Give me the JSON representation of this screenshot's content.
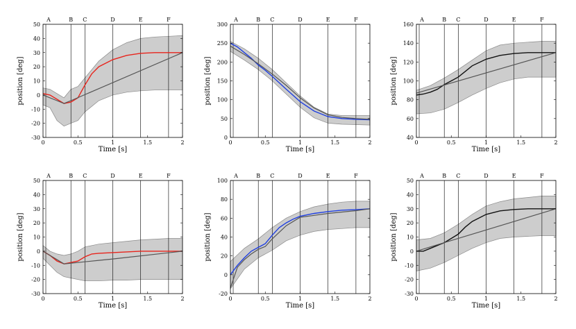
{
  "chart_data": [
    {
      "type": "line",
      "xlabel": "Time [s]",
      "ylabel": "position [deg]",
      "xlim": [
        0,
        2
      ],
      "ylim": [
        -30,
        50
      ],
      "xticks": [
        0,
        0.5,
        1,
        1.5,
        2
      ],
      "yticks": [
        -30,
        -20,
        -10,
        0,
        10,
        20,
        30,
        40,
        50
      ],
      "event_lines": [
        {
          "label": "A",
          "x": 0.04
        },
        {
          "label": "B",
          "x": 0.4
        },
        {
          "label": "C",
          "x": 0.6
        },
        {
          "label": "D",
          "x": 1.0
        },
        {
          "label": "E",
          "x": 1.4
        },
        {
          "label": "F",
          "x": 1.8
        }
      ],
      "band": {
        "x": [
          0,
          0.1,
          0.2,
          0.3,
          0.4,
          0.5,
          0.6,
          0.8,
          1.0,
          1.2,
          1.4,
          1.6,
          1.8,
          2.0
        ],
        "upper": [
          5,
          4,
          1,
          -2,
          4,
          6,
          12,
          24,
          32,
          37,
          40,
          41,
          41.5,
          42
        ],
        "lower": [
          -7,
          -9,
          -18,
          -22,
          -20,
          -18,
          -12,
          -4,
          0,
          2,
          3,
          3.5,
          3.5,
          3.5
        ]
      },
      "series": [
        {
          "color": "#e8241c",
          "x": [
            0,
            0.1,
            0.2,
            0.3,
            0.4,
            0.5,
            0.6,
            0.7,
            0.8,
            1.0,
            1.2,
            1.4,
            1.6,
            1.8,
            2.0
          ],
          "y": [
            1,
            0,
            -3,
            -6,
            -5,
            -2,
            7,
            15,
            20,
            25,
            28,
            29.5,
            30,
            30,
            30
          ]
        },
        {
          "color": "#555555",
          "x": [
            0,
            0.1,
            0.2,
            0.3,
            0.4,
            2.0
          ],
          "y": [
            0,
            -2,
            -4,
            -6,
            -4,
            30
          ]
        }
      ]
    },
    {
      "type": "line",
      "xlabel": "Time [s]",
      "ylabel": "position [deg]",
      "xlim": [
        0,
        2
      ],
      "ylim": [
        0,
        300
      ],
      "xticks": [
        0,
        0.5,
        1,
        1.5,
        2
      ],
      "yticks": [
        0,
        50,
        100,
        150,
        200,
        250,
        300
      ],
      "event_lines": [
        {
          "label": "A",
          "x": 0.04
        },
        {
          "label": "B",
          "x": 0.4
        },
        {
          "label": "C",
          "x": 0.6
        },
        {
          "label": "D",
          "x": 1.0
        },
        {
          "label": "E",
          "x": 1.4
        },
        {
          "label": "F",
          "x": 1.8
        }
      ],
      "band": {
        "x": [
          0,
          0.2,
          0.4,
          0.6,
          0.8,
          1.0,
          1.2,
          1.4,
          1.6,
          1.8,
          2.0
        ],
        "upper": [
          255,
          235,
          210,
          180,
          145,
          110,
          80,
          62,
          58,
          58,
          58
        ],
        "lower": [
          228,
          205,
          180,
          150,
          115,
          80,
          52,
          38,
          35,
          34,
          33
        ]
      },
      "series": [
        {
          "color": "#1f3fe0",
          "x": [
            0,
            0.1,
            0.2,
            0.3,
            0.4,
            0.5,
            0.6,
            0.8,
            1.0,
            1.2,
            1.4,
            1.6,
            1.8,
            2.0
          ],
          "y": [
            250,
            240,
            225,
            210,
            192,
            178,
            162,
            128,
            95,
            70,
            55,
            50,
            48,
            47
          ]
        },
        {
          "color": "#555555",
          "x": [
            0,
            0.2,
            0.4,
            0.6,
            0.8,
            1.0,
            1.2,
            1.4,
            1.6,
            1.8,
            2.0
          ],
          "y": [
            242,
            220,
            195,
            168,
            138,
            105,
            78,
            60,
            53,
            50,
            48
          ]
        }
      ]
    },
    {
      "type": "line",
      "xlabel": "Time [s]",
      "ylabel": "position [deg]",
      "xlim": [
        0,
        2
      ],
      "ylim": [
        40,
        160
      ],
      "xticks": [
        0,
        0.5,
        1,
        1.5,
        2
      ],
      "yticks": [
        40,
        60,
        80,
        100,
        120,
        140,
        160
      ],
      "event_lines": [
        {
          "label": "A",
          "x": 0.04
        },
        {
          "label": "B",
          "x": 0.4
        },
        {
          "label": "C",
          "x": 0.6
        },
        {
          "label": "D",
          "x": 1.0
        },
        {
          "label": "E",
          "x": 1.4
        },
        {
          "label": "F",
          "x": 1.8
        }
      ],
      "band": {
        "x": [
          0,
          0.2,
          0.4,
          0.6,
          0.8,
          1.0,
          1.2,
          1.4,
          1.6,
          1.8,
          2.0
        ],
        "upper": [
          90,
          95,
          103,
          112,
          122,
          132,
          138,
          140,
          141,
          142,
          142
        ],
        "lower": [
          65,
          66,
          70,
          77,
          85,
          92,
          98,
          102,
          104,
          104,
          104
        ]
      },
      "series": [
        {
          "color": "#111111",
          "x": [
            0,
            0.1,
            0.2,
            0.3,
            0.4,
            0.5,
            0.6,
            0.7,
            0.8,
            1.0,
            1.2,
            1.4,
            1.6,
            1.8,
            2.0
          ],
          "y": [
            85,
            86,
            88,
            91,
            96,
            100,
            104,
            110,
            116,
            123,
            127,
            129,
            130,
            130,
            130
          ]
        },
        {
          "color": "#555555",
          "x": [
            0,
            2.0
          ],
          "y": [
            87,
            130
          ]
        }
      ]
    },
    {
      "type": "line",
      "xlabel": "Time [s]",
      "ylabel": "position [deg]",
      "xlim": [
        0,
        2
      ],
      "ylim": [
        -30,
        50
      ],
      "xticks": [
        0,
        0.5,
        1,
        1.5,
        2
      ],
      "yticks": [
        -30,
        -20,
        -10,
        0,
        10,
        20,
        30,
        40,
        50
      ],
      "event_lines": [
        {
          "label": "A",
          "x": 0.04
        },
        {
          "label": "B",
          "x": 0.4
        },
        {
          "label": "C",
          "x": 0.6
        },
        {
          "label": "D",
          "x": 1.0
        },
        {
          "label": "E",
          "x": 1.4
        },
        {
          "label": "F",
          "x": 1.8
        }
      ],
      "band": {
        "x": [
          0,
          0.1,
          0.2,
          0.3,
          0.4,
          0.5,
          0.6,
          0.8,
          1.0,
          1.2,
          1.4,
          1.6,
          1.8,
          2.0
        ],
        "upper": [
          4,
          0,
          -2,
          -3,
          -2,
          0,
          3,
          5,
          6,
          7,
          8,
          8.5,
          9,
          9
        ],
        "lower": [
          -5,
          -10,
          -15,
          -18,
          -19,
          -20,
          -21,
          -21,
          -20.5,
          -20.5,
          -20,
          -20,
          -20,
          -20
        ]
      },
      "series": [
        {
          "color": "#e8241c",
          "x": [
            0,
            0.1,
            0.2,
            0.3,
            0.4,
            0.5,
            0.6,
            0.7,
            0.8,
            1.0,
            1.2,
            1.4,
            1.6,
            1.8,
            2.0
          ],
          "y": [
            0,
            -3,
            -7,
            -9,
            -8,
            -7,
            -4,
            -2,
            -1.5,
            -1,
            -0.5,
            0,
            0,
            0,
            0
          ]
        },
        {
          "color": "#555555",
          "x": [
            0,
            0.3,
            0.5,
            0.8,
            1.0,
            2.0
          ],
          "y": [
            0,
            -9,
            -8,
            -6.5,
            -5.5,
            0
          ]
        }
      ]
    },
    {
      "type": "line",
      "xlabel": "Time [s]",
      "ylabel": "position [deg]",
      "xlim": [
        0,
        2
      ],
      "ylim": [
        -20,
        100
      ],
      "xticks": [
        0,
        0.5,
        1,
        1.5,
        2
      ],
      "yticks": [
        -20,
        0,
        20,
        40,
        60,
        80,
        100
      ],
      "event_lines": [
        {
          "label": "A",
          "x": 0.04
        },
        {
          "label": "B",
          "x": 0.4
        },
        {
          "label": "C",
          "x": 0.6
        },
        {
          "label": "D",
          "x": 1.0
        },
        {
          "label": "E",
          "x": 1.4
        },
        {
          "label": "F",
          "x": 1.8
        }
      ],
      "band": {
        "x": [
          0,
          0.2,
          0.4,
          0.6,
          0.8,
          1.0,
          1.2,
          1.4,
          1.6,
          1.8,
          2.0
        ],
        "upper": [
          14,
          28,
          38,
          50,
          60,
          67,
          72,
          75,
          77,
          78,
          78
        ],
        "lower": [
          -15,
          6,
          18,
          26,
          36,
          42,
          46,
          48,
          49,
          50,
          50
        ]
      },
      "series": [
        {
          "color": "#1f3fe0",
          "x": [
            0,
            0.1,
            0.2,
            0.3,
            0.4,
            0.5,
            0.6,
            0.7,
            0.8,
            0.9,
            1.0,
            1.2,
            1.4,
            1.6,
            1.8,
            2.0
          ],
          "y": [
            0,
            10,
            18,
            25,
            29,
            33,
            42,
            50,
            55,
            59,
            62,
            65,
            67,
            68.5,
            69,
            70
          ]
        },
        {
          "color": "#555555",
          "x": [
            0,
            0.1,
            0.2,
            0.3,
            0.4,
            0.5,
            0.6,
            0.8,
            1.0,
            1.2,
            1.4,
            1.6,
            1.8,
            2.0
          ],
          "y": [
            -14,
            8,
            16,
            22,
            27,
            30,
            38,
            52,
            61,
            63,
            65,
            66.5,
            68,
            70
          ]
        }
      ]
    },
    {
      "type": "line",
      "xlabel": "Time [s]",
      "ylabel": "position [deg]",
      "xlim": [
        0,
        2
      ],
      "ylim": [
        -30,
        50
      ],
      "xticks": [
        0,
        0.5,
        1,
        1.5,
        2
      ],
      "yticks": [
        -30,
        -20,
        -10,
        0,
        10,
        20,
        30,
        40,
        50
      ],
      "event_lines": [
        {
          "label": "A",
          "x": 0.04
        },
        {
          "label": "B",
          "x": 0.4
        },
        {
          "label": "C",
          "x": 0.6
        },
        {
          "label": "D",
          "x": 1.0
        },
        {
          "label": "E",
          "x": 1.4
        },
        {
          "label": "F",
          "x": 1.8
        }
      ],
      "band": {
        "x": [
          0,
          0.2,
          0.4,
          0.6,
          0.8,
          1.0,
          1.2,
          1.4,
          1.6,
          1.8,
          2.0
        ],
        "upper": [
          8,
          9,
          13,
          19,
          26,
          32,
          35,
          37,
          38,
          39,
          39
        ],
        "lower": [
          -14,
          -12,
          -8,
          -3,
          2,
          6,
          9,
          10,
          10.5,
          11,
          11
        ]
      },
      "series": [
        {
          "color": "#111111",
          "x": [
            0,
            0.1,
            0.2,
            0.3,
            0.4,
            0.5,
            0.6,
            0.7,
            0.8,
            1.0,
            1.2,
            1.4,
            1.6,
            1.8,
            2.0
          ],
          "y": [
            0,
            0,
            2,
            4,
            6,
            9,
            12,
            17,
            21,
            26,
            28.5,
            29.5,
            30,
            30,
            30
          ]
        },
        {
          "color": "#555555",
          "x": [
            0,
            0.4,
            2.0
          ],
          "y": [
            0,
            6,
            30
          ]
        }
      ]
    }
  ]
}
